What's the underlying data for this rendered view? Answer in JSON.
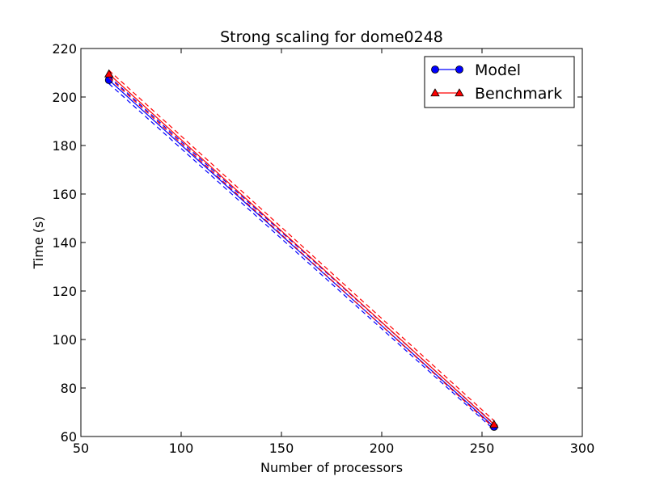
{
  "chart_data": {
    "type": "line",
    "title": "Strong scaling for dome0248",
    "xlabel": "Number of processors",
    "ylabel": "Time (s)",
    "xlim": [
      50,
      300
    ],
    "ylim": [
      60,
      220
    ],
    "xticks": [
      50,
      100,
      150,
      200,
      250,
      300
    ],
    "yticks": [
      60,
      80,
      100,
      120,
      140,
      160,
      180,
      200,
      220
    ],
    "grid": false,
    "legend_position": "top-right",
    "series": [
      {
        "name": "Model",
        "color": "#0000ff",
        "marker": "circle",
        "x": [
          64,
          256
        ],
        "values": [
          207,
          64
        ],
        "band_lower": [
          205.5,
          62.8
        ],
        "band_upper": [
          208.5,
          65.2
        ]
      },
      {
        "name": "Benchmark",
        "color": "#ff0000",
        "marker": "triangle",
        "x": [
          64,
          256
        ],
        "values": [
          209.5,
          65
        ],
        "band_lower": [
          208,
          63.5
        ],
        "band_upper": [
          211,
          66.5
        ]
      }
    ]
  }
}
